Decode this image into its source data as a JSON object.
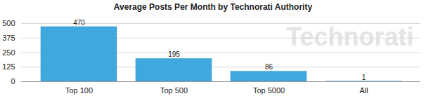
{
  "chart_data": {
    "type": "bar",
    "title": "Average Posts Per Month by Technorati Authority",
    "categories": [
      "Top 100",
      "Top 500",
      "Top 5000",
      "All"
    ],
    "values": [
      470,
      195,
      86,
      1
    ],
    "color": "#3fa8df",
    "ylim": [
      0,
      500
    ],
    "yticks": [
      0,
      125,
      250,
      375,
      500
    ],
    "grid": true,
    "data_labels": true,
    "annotations": [
      "Technorati"
    ]
  }
}
